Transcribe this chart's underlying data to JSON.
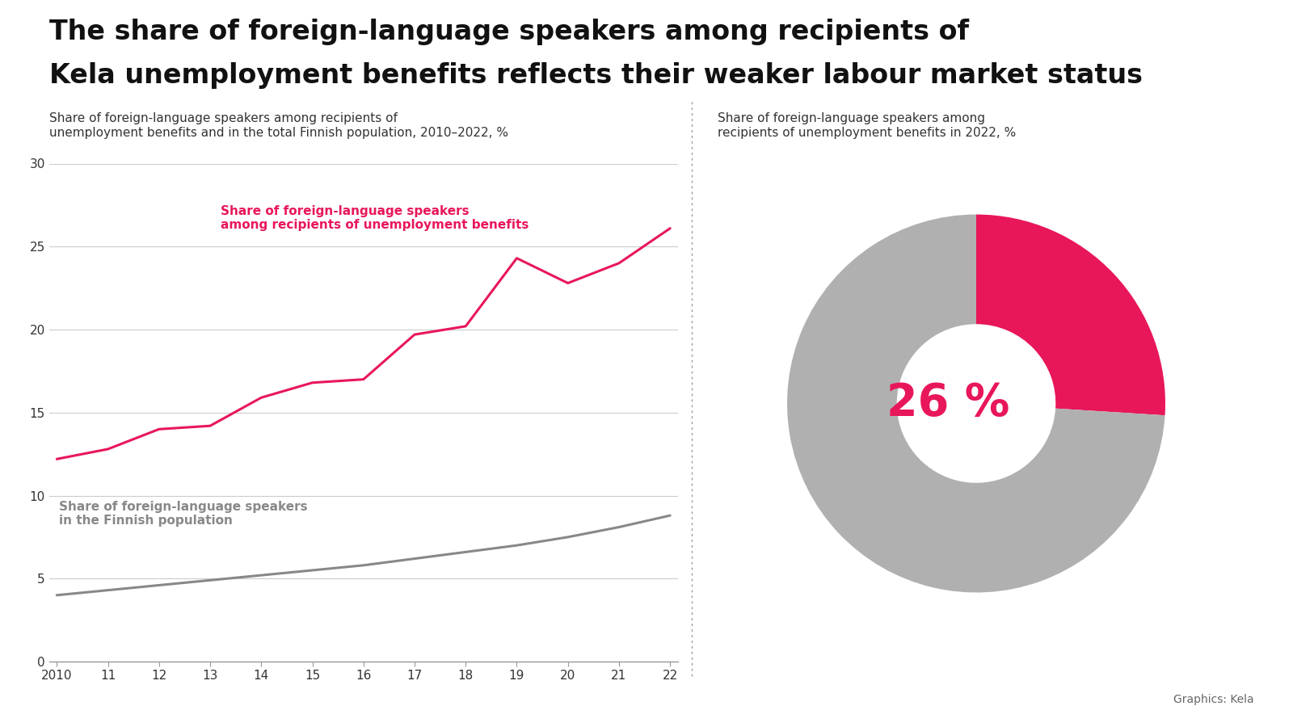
{
  "title_line1": "The share of foreign-language speakers among recipients of",
  "title_line2": "Kela unemployment benefits reflects their weaker labour market status",
  "left_subtitle": "Share of foreign-language speakers among recipients of\nunemployment benefits and in the total Finnish population, 2010–2022, %",
  "right_subtitle": "Share of foreign-language speakers among\nrecipients of unemployment benefits in 2022, %",
  "years": [
    2010,
    2011,
    2012,
    2013,
    2014,
    2015,
    2016,
    2017,
    2018,
    2019,
    2020,
    2021,
    2022
  ],
  "unemployment_line": [
    12.2,
    12.8,
    14.0,
    14.2,
    15.9,
    16.8,
    17.0,
    19.7,
    20.2,
    24.3,
    22.8,
    24.0,
    26.1
  ],
  "population_line": [
    4.0,
    4.3,
    4.6,
    4.9,
    5.2,
    5.5,
    5.8,
    6.2,
    6.6,
    7.0,
    7.5,
    8.1,
    8.8
  ],
  "unemployment_color": "#e8175a",
  "population_color": "#888888",
  "donut_value": 26,
  "donut_color_main": "#e8175a",
  "donut_color_rest": "#b0b0b0",
  "donut_label": "26 %",
  "donut_label_color": "#e8175a",
  "unemployment_label": "Share of foreign-language speakers\namong recipients of unemployment benefits",
  "population_label": "Share of foreign-language speakers\nin the Finnish population",
  "ylim": [
    0,
    30
  ],
  "yticks": [
    0,
    5,
    10,
    15,
    20,
    25,
    30
  ],
  "background_color": "#ffffff",
  "title_fontsize": 24,
  "subtitle_fontsize": 11,
  "label_fontsize": 11,
  "tick_fontsize": 11,
  "grid_color": "#cccccc",
  "axis_color": "#999999",
  "graphics_credit": "Graphics: Kela"
}
